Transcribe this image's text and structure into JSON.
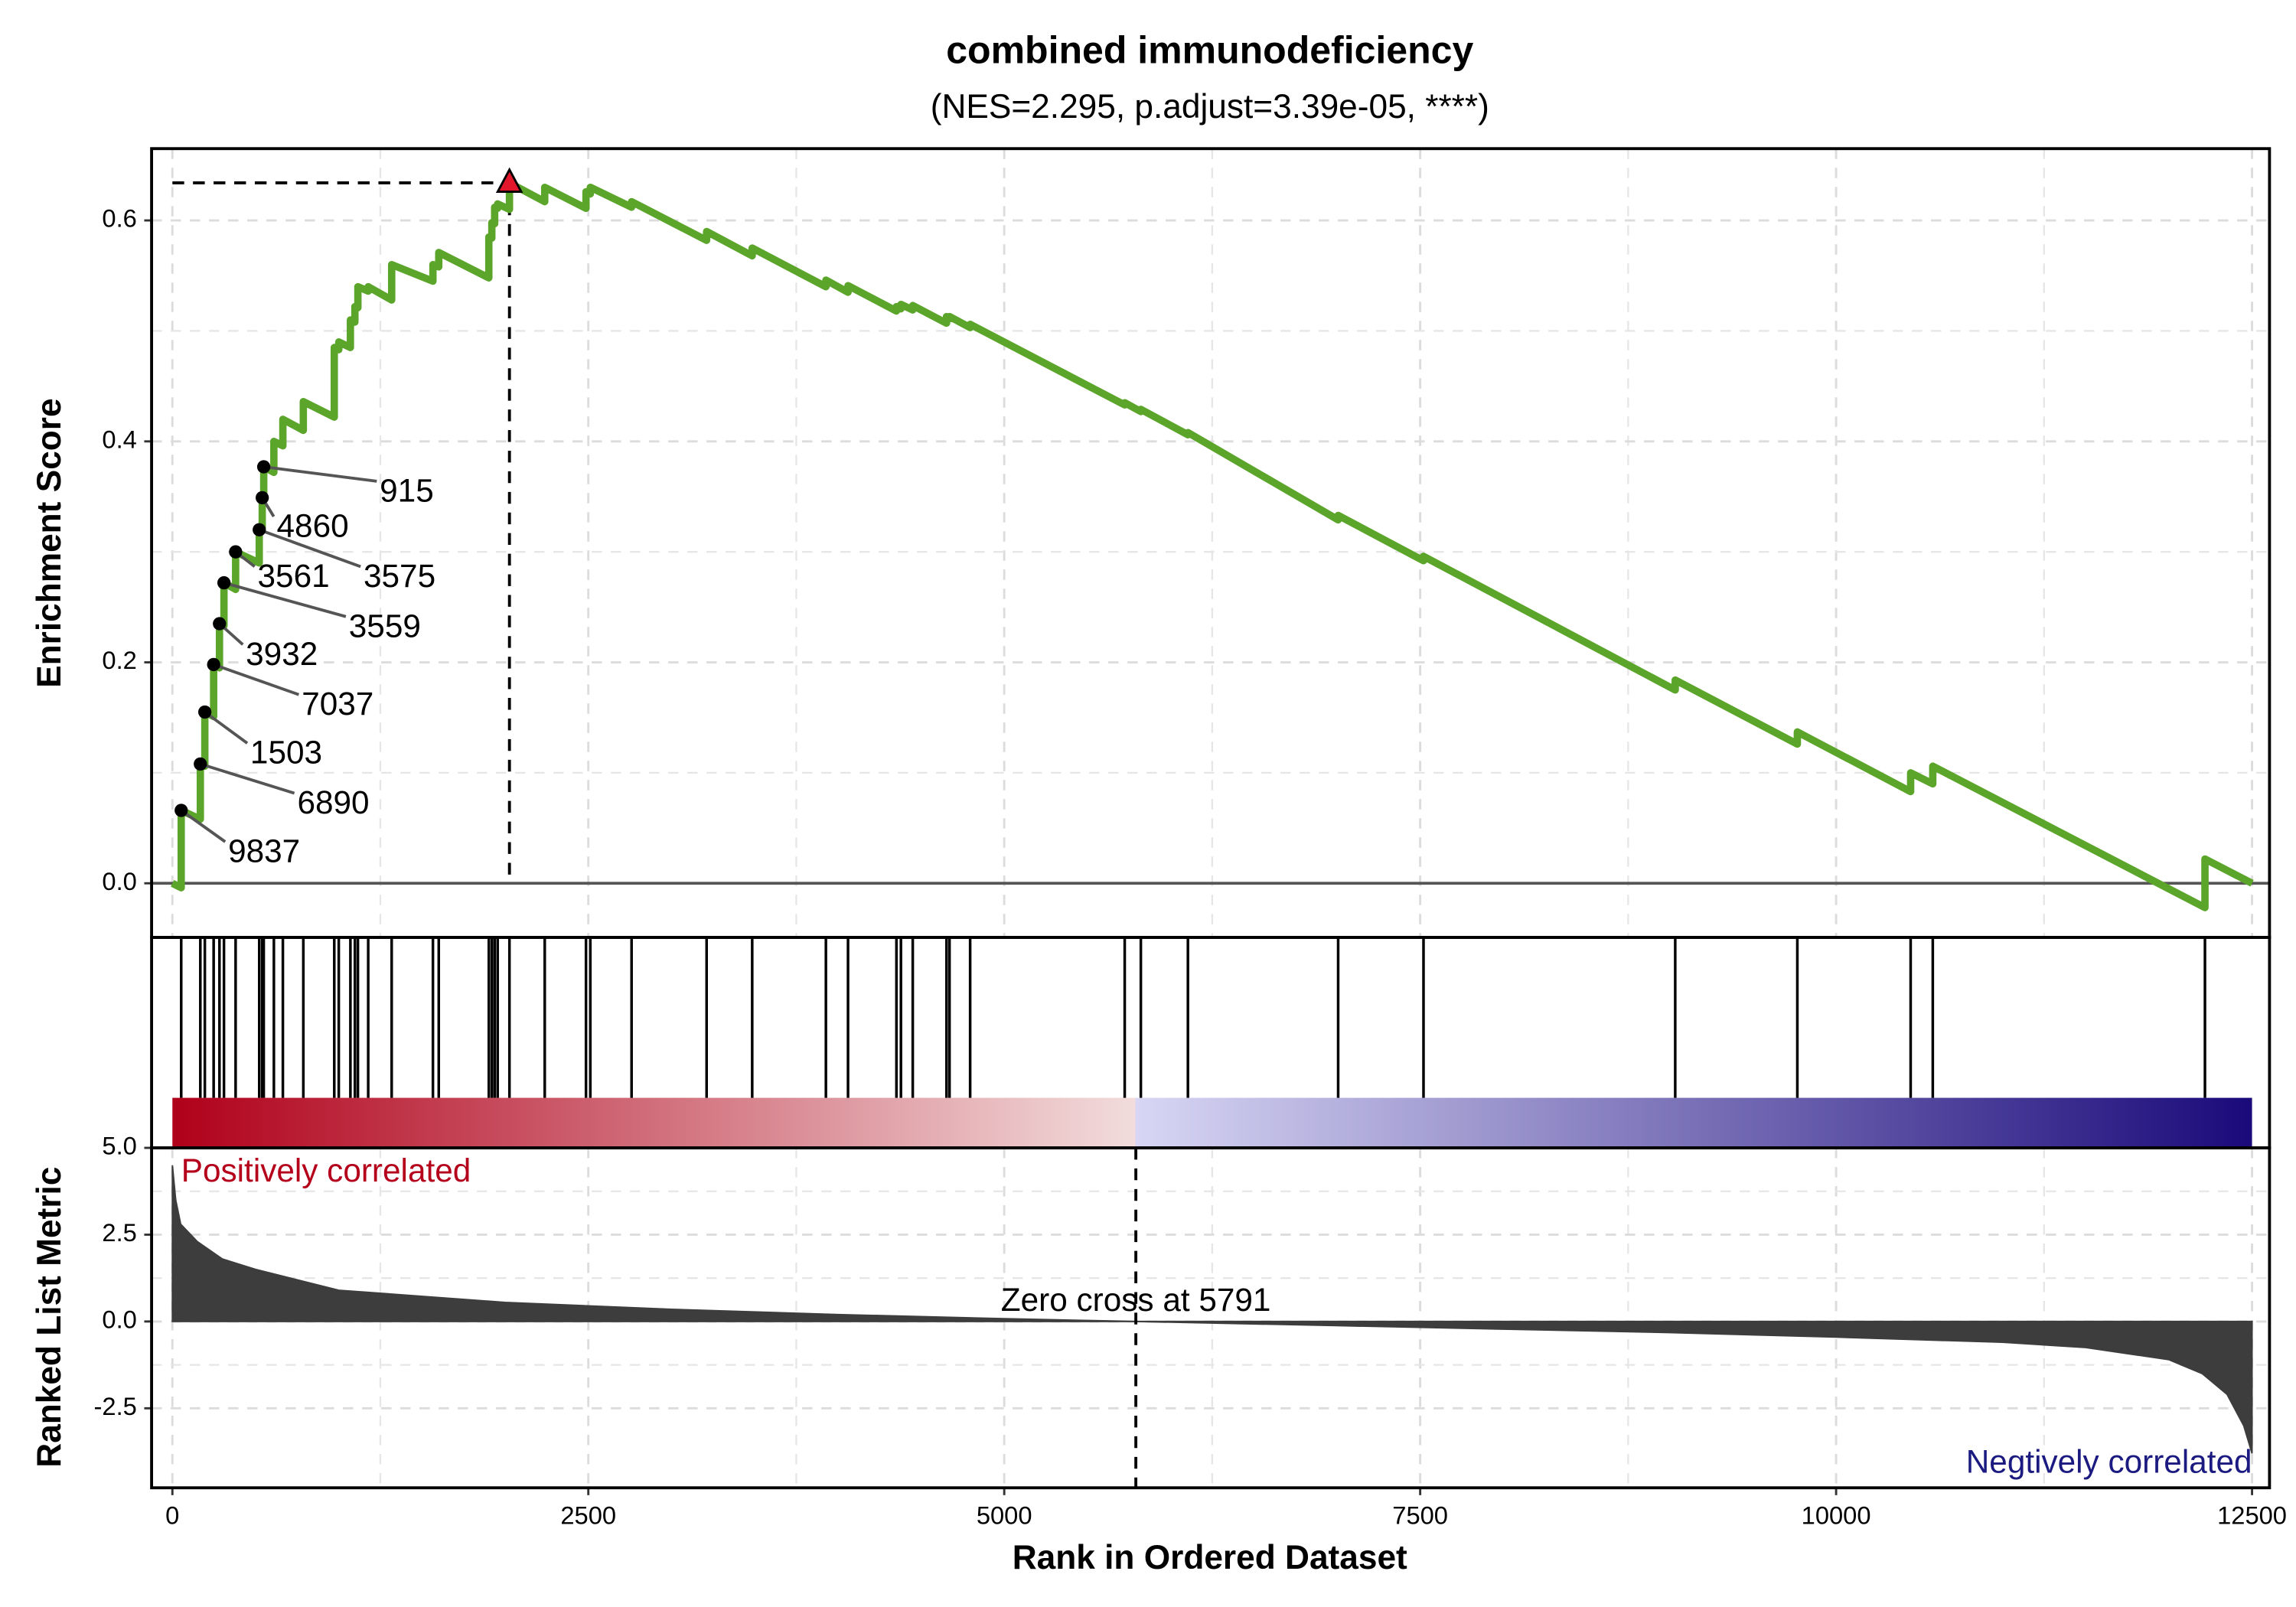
{
  "chart_data": {
    "type": "gsea",
    "title": "combined immunodeficiency",
    "subtitle": "(NES=2.295, p.adjust=3.39e-05, ****)",
    "xlabel": "Rank in Ordered Dataset",
    "xlim": [
      -125,
      12605
    ],
    "xticks": [
      0,
      2500,
      5000,
      7500,
      10000,
      12500
    ],
    "grid": true,
    "es": {
      "ylabel": "Enrichment Score",
      "ylim": [
        -0.049,
        0.665
      ],
      "yticks": [
        {
          "value": 0,
          "label": "0.0"
        },
        0.2,
        0.4,
        0.6
      ],
      "color": "#5ba52b",
      "x": [
        0,
        53,
        53,
        168,
        168,
        195,
        195,
        248,
        248,
        283,
        283,
        310,
        310,
        380,
        380,
        522,
        522,
        540,
        540,
        549,
        549,
        610,
        610,
        664,
        664,
        787,
        787,
        973,
        973,
        1000,
        1000,
        1070,
        1070,
        1097,
        1097,
        1115,
        1115,
        1177,
        1177,
        1318,
        1318,
        1566,
        1566,
        1601,
        1601,
        1902,
        1902,
        1920,
        1920,
        1937,
        1937,
        1955,
        1955,
        2026,
        2026,
        2238,
        2238,
        2486,
        2486,
        2512,
        2512,
        2760,
        2760,
        3211,
        3211,
        3485,
        3485,
        3928,
        3928,
        4061,
        4061,
        4352,
        4352,
        4379,
        4379,
        4450,
        4450,
        4653,
        4653,
        4671,
        4671,
        4795,
        4795,
        5724,
        5724,
        5821,
        5821,
        6104,
        6104,
        7007,
        7007,
        7520,
        7520,
        9033,
        9033,
        9767,
        9767,
        10448,
        10448,
        10581,
        10581,
        12217,
        12217,
        12500
      ],
      "values": [
        0,
        -0.004,
        0.066,
        0.058,
        0.108,
        0.106,
        0.155,
        0.151,
        0.198,
        0.195,
        0.235,
        0.233,
        0.272,
        0.266,
        0.3,
        0.29,
        0.32,
        0.319,
        0.349,
        0.348,
        0.377,
        0.372,
        0.4,
        0.396,
        0.42,
        0.41,
        0.436,
        0.422,
        0.485,
        0.483,
        0.49,
        0.485,
        0.51,
        0.508,
        0.522,
        0.521,
        0.54,
        0.536,
        0.54,
        0.528,
        0.56,
        0.545,
        0.56,
        0.558,
        0.571,
        0.548,
        0.585,
        0.584,
        0.598,
        0.597,
        0.612,
        0.611,
        0.615,
        0.61,
        0.634,
        0.617,
        0.63,
        0.611,
        0.626,
        0.624,
        0.63,
        0.612,
        0.617,
        0.582,
        0.59,
        0.568,
        0.575,
        0.54,
        0.546,
        0.535,
        0.541,
        0.518,
        0.522,
        0.52,
        0.524,
        0.519,
        0.523,
        0.507,
        0.513,
        0.511,
        0.513,
        0.503,
        0.506,
        0.433,
        0.435,
        0.427,
        0.429,
        0.406,
        0.408,
        0.329,
        0.333,
        0.292,
        0.296,
        0.175,
        0.184,
        0.126,
        0.137,
        0.083,
        0.1,
        0.09,
        0.106,
        -0.022,
        0.022,
        0
      ],
      "peak": {
        "x": 2026,
        "value": 0.634,
        "color": "#e3172b"
      },
      "genes": {
        "labels": [
          "9837",
          "6890",
          "1503",
          "7037",
          "3932",
          "3559",
          "3561",
          "3575",
          "4860",
          "915"
        ],
        "x": [
          53,
          168,
          195,
          248,
          283,
          310,
          380,
          522,
          540,
          549
        ],
        "values": [
          0.066,
          0.108,
          0.155,
          0.198,
          0.235,
          0.272,
          0.3,
          0.32,
          0.349,
          0.377
        ]
      }
    },
    "hits": [
      53,
      168,
      195,
      248,
      283,
      310,
      380,
      522,
      540,
      549,
      610,
      664,
      787,
      973,
      1000,
      1070,
      1097,
      1115,
      1177,
      1318,
      1566,
      1601,
      1902,
      1920,
      1937,
      1955,
      2026,
      2238,
      2486,
      2512,
      2760,
      3211,
      3485,
      3928,
      4061,
      4352,
      4379,
      4450,
      4653,
      4671,
      4795,
      5724,
      5821,
      6104,
      7007,
      7520,
      9033,
      9767,
      10448,
      10581,
      12217
    ],
    "gradient": [
      "#b0001a",
      "#f2dcdc",
      "#d8d6f4",
      "#1a0a7a"
    ],
    "metric": {
      "ylabel": "Ranked List Metric",
      "ylim": [
        -4.79,
        5.0
      ],
      "yticks": [
        -2.5,
        {
          "value": 0,
          "label": "0.0"
        },
        2.5,
        {
          "value": 5,
          "label": "5.0"
        }
      ],
      "color": "#3d3d3d",
      "x": [
        0,
        20,
        50,
        150,
        300,
        500,
        1000,
        2000,
        3000,
        4000,
        5000,
        5791,
        7000,
        8000,
        9000,
        10000,
        11000,
        11500,
        12000,
        12200,
        12350,
        12450,
        12500
      ],
      "values": [
        4.5,
        3.5,
        2.8,
        2.3,
        1.8,
        1.5,
        0.9,
        0.55,
        0.35,
        0.2,
        0.08,
        0,
        -0.12,
        -0.22,
        -0.32,
        -0.45,
        -0.6,
        -0.75,
        -1.1,
        -1.5,
        -2.1,
        -3.0,
        -3.8
      ],
      "zero_cross": 5791,
      "zero_cross_label": "Zero cross at 5791",
      "positive_label": "Positively correlated",
      "negative_label": "Negtively correlated",
      "positive_color": "#b5001b",
      "negative_color": "#1b1a80"
    }
  }
}
